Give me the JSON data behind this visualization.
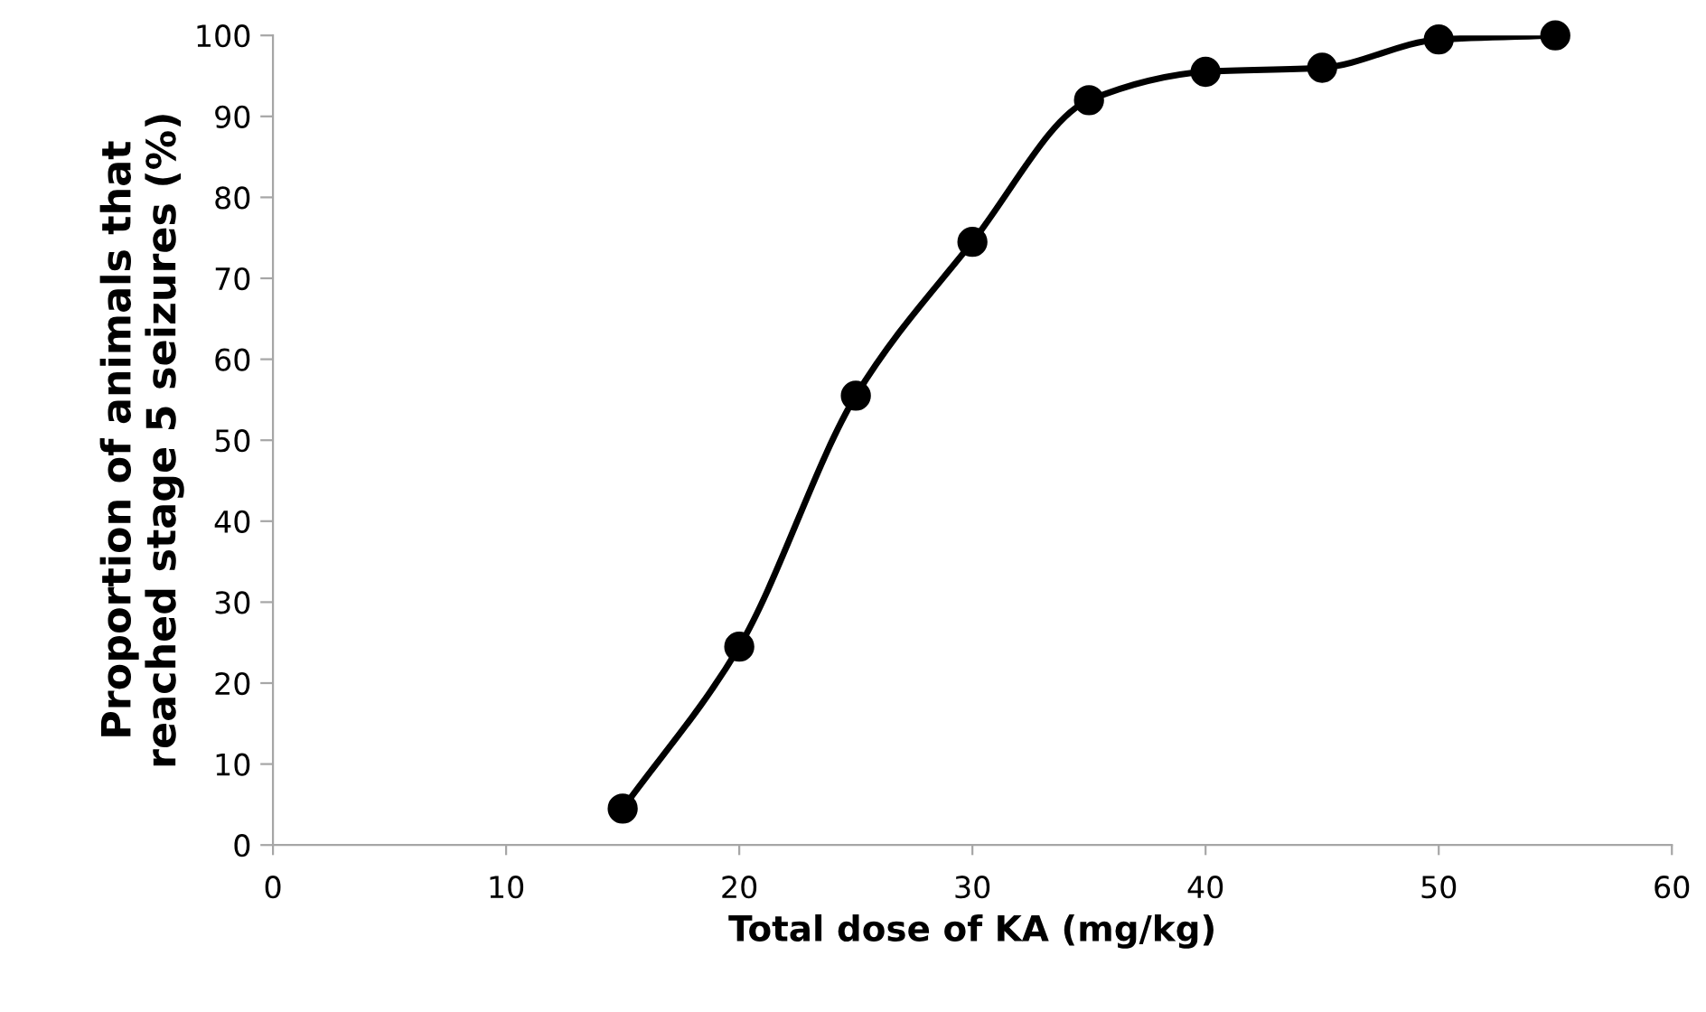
{
  "chart_data": {
    "type": "line",
    "xlabel": "Total dose of KA (mg/kg)",
    "ylabel": "Proportion of animals that\nreached stage 5 seizures (%)",
    "x": [
      15,
      20,
      25,
      30,
      35,
      40,
      45,
      50,
      55
    ],
    "series": [
      {
        "color": "#000000",
        "values": [
          4.5,
          24.5,
          55.5,
          74.5,
          92,
          95.5,
          96,
          99.5,
          100
        ]
      }
    ],
    "xlim": [
      0,
      60
    ],
    "xticks": [
      0,
      10,
      20,
      30,
      40,
      50,
      60
    ],
    "ylim": [
      0,
      100
    ],
    "yticks": [
      0,
      10,
      20,
      30,
      40,
      50,
      60,
      70,
      80,
      90,
      100
    ],
    "grid": false,
    "legend": false,
    "marker": "circle",
    "line_style": "solid"
  }
}
